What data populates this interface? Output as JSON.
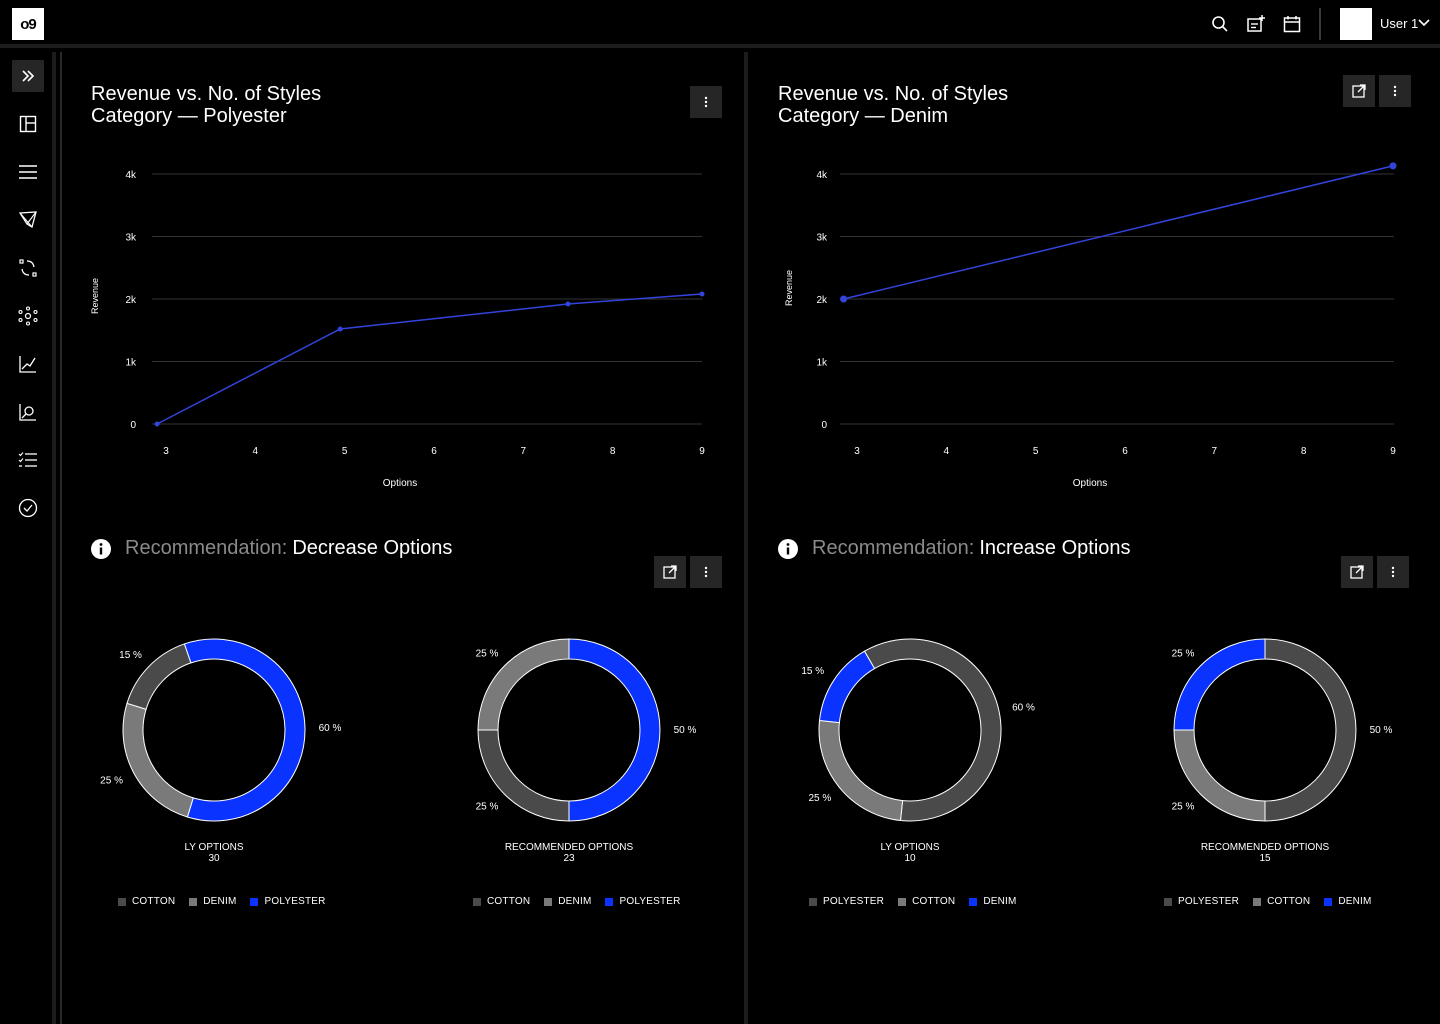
{
  "app": {
    "logo_text": "o9",
    "user_name": "User 1"
  },
  "colors": {
    "accent": "#0a33ff",
    "dark_gray": "#4a4a4a",
    "mid_gray": "#7a7a7a",
    "line": "#3344dd"
  },
  "topbar": {
    "icons": [
      "search-icon",
      "add-note-icon",
      "calendar-icon"
    ]
  },
  "sidebar": {
    "items": [
      "expand-icon",
      "layout-icon",
      "menu-icon",
      "network-icon",
      "flow-icon",
      "hub-icon",
      "trend-chart-icon",
      "analysis-icon",
      "checklist-icon",
      "check-circle-icon"
    ]
  },
  "panels": [
    {
      "title_line1": "Revenue vs. No. of Styles",
      "title_line2": "Category — Polyester",
      "chart_data": {
        "type": "line",
        "xlabel": "Options",
        "ylabel": "Revenue",
        "x_ticks": [
          "3",
          "4",
          "5",
          "6",
          "7",
          "8",
          "9"
        ],
        "y_ticks": [
          "0",
          "1k",
          "2k",
          "3k",
          "4k"
        ],
        "xlim": [
          3,
          9
        ],
        "ylim": [
          0,
          4000
        ],
        "series": [
          {
            "x": [
              2.9,
              4.95,
              7.5,
              9.0
            ],
            "y": [
              0,
              1520,
              1920,
              2080
            ]
          }
        ]
      },
      "recommendation": {
        "label": "Recommendation:",
        "value": "Decrease Options"
      },
      "donuts": [
        {
          "caption_line1": "LY OPTIONS",
          "caption_line2": "30",
          "slices": [
            {
              "name": "POLYESTER",
              "value": 60,
              "label": "60 %",
              "color": "#0a33ff"
            },
            {
              "name": "DENIM",
              "value": 25,
              "label": "25 %",
              "color": "#7a7a7a"
            },
            {
              "name": "COTTON",
              "value": 15,
              "label": "15 %",
              "color": "#4a4a4a"
            }
          ],
          "legend": [
            {
              "name": "COTTON",
              "color": "#4a4a4a"
            },
            {
              "name": "DENIM",
              "color": "#7a7a7a"
            },
            {
              "name": "POLYESTER",
              "color": "#0a33ff"
            }
          ]
        },
        {
          "caption_line1": "RECOMMENDED OPTIONS",
          "caption_line2": "23",
          "slices": [
            {
              "name": "POLYESTER",
              "value": 50,
              "label": "50 %",
              "color": "#0a33ff"
            },
            {
              "name": "COTTON",
              "value": 25,
              "label": "25 %",
              "color": "#4a4a4a"
            },
            {
              "name": "DENIM",
              "value": 25,
              "label": "25 %",
              "color": "#7a7a7a"
            }
          ],
          "legend": [
            {
              "name": "COTTON",
              "color": "#4a4a4a"
            },
            {
              "name": "DENIM",
              "color": "#7a7a7a"
            },
            {
              "name": "POLYESTER",
              "color": "#0a33ff"
            }
          ]
        }
      ]
    },
    {
      "title_line1": "Revenue vs. No. of Styles",
      "title_line2": "Category — Denim",
      "chart_data": {
        "type": "line",
        "xlabel": "Options",
        "ylabel": "Revenue",
        "x_ticks": [
          "3",
          "4",
          "5",
          "6",
          "7",
          "8",
          "9"
        ],
        "y_ticks": [
          "0",
          "1k",
          "2k",
          "3k",
          "4k"
        ],
        "xlim": [
          3,
          9
        ],
        "ylim": [
          0,
          4000
        ],
        "series": [
          {
            "x": [
              2.85,
              9.0
            ],
            "y": [
              2000,
              4130
            ]
          }
        ]
      },
      "recommendation": {
        "label": "Recommendation:",
        "value": "Increase Options"
      },
      "donuts": [
        {
          "caption_line1": "LY OPTIONS",
          "caption_line2": "10",
          "slices": [
            {
              "name": "POLYESTER",
              "value": 60,
              "label": "60 %",
              "color": "#4a4a4a"
            },
            {
              "name": "COTTON",
              "value": 25,
              "label": "25 %",
              "color": "#7a7a7a"
            },
            {
              "name": "DENIM",
              "value": 15,
              "label": "15 %",
              "color": "#0a33ff"
            }
          ],
          "legend": [
            {
              "name": "POLYESTER",
              "color": "#4a4a4a"
            },
            {
              "name": "COTTON",
              "color": "#7a7a7a"
            },
            {
              "name": "DENIM",
              "color": "#0a33ff"
            }
          ]
        },
        {
          "caption_line1": "RECOMMENDED OPTIONS",
          "caption_line2": "15",
          "slices": [
            {
              "name": "POLYESTER",
              "value": 50,
              "label": "50 %",
              "color": "#4a4a4a"
            },
            {
              "name": "COTTON",
              "value": 25,
              "label": "25 %",
              "color": "#7a7a7a"
            },
            {
              "name": "DENIM",
              "value": 25,
              "label": "25 %",
              "color": "#0a33ff"
            }
          ],
          "legend": [
            {
              "name": "POLYESTER",
              "color": "#4a4a4a"
            },
            {
              "name": "COTTON",
              "color": "#7a7a7a"
            },
            {
              "name": "DENIM",
              "color": "#0a33ff"
            }
          ]
        }
      ]
    }
  ]
}
